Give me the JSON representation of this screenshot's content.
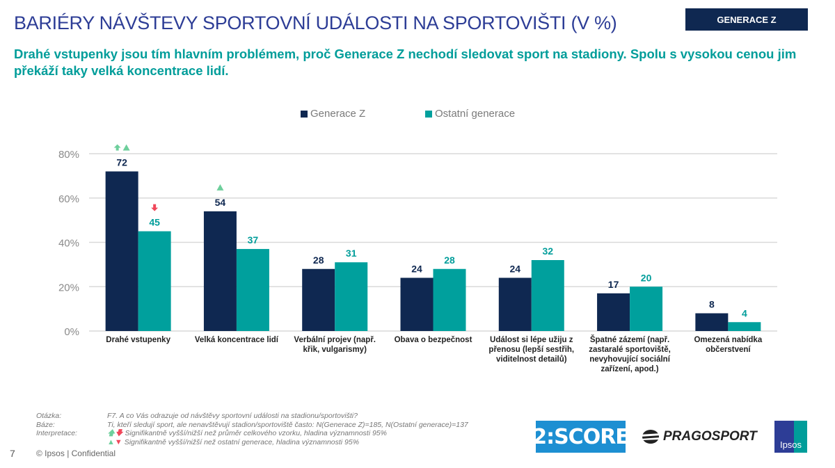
{
  "header": {
    "title": "BARIÉRY NÁVŠTEVY SPORTOVNÍ UDÁLOSTI NA SPORTOVIŠTI (V %)",
    "badge": "GENERACE Z",
    "subtitle": "Drahé vstupenky jsou tím hlavním problémem, proč Generace Z nechodí sledovat sport na stadiony. Spolu s vysokou cenou jim překáží taky velká koncentrace lidí."
  },
  "colors": {
    "series_gen_z": "#0f2851",
    "series_other": "#00a09d",
    "sig_up": "#6ecf9c",
    "sig_down": "#f0475a",
    "grid": "#d9d9d9"
  },
  "chart_data": {
    "type": "bar",
    "title": "BARIÉRY NÁVŠTEVY SPORTOVNÍ UDÁLOSTI NA SPORTOVIŠTI (V %)",
    "xlabel": "",
    "ylabel": "",
    "ylim": [
      0,
      80
    ],
    "yticks": [
      0,
      20,
      40,
      60,
      80
    ],
    "ytick_labels": [
      "0%",
      "20%",
      "40%",
      "60%",
      "80%"
    ],
    "grid": true,
    "legend_position": "top-center",
    "categories": [
      "Drahé vstupenky",
      "Velká koncentrace lidí",
      "Verbální projev (např. křik, vulgarismy)",
      "Obava o bezpečnost",
      "Událost si lépe užiju z přenosu (lepší sestřih, viditelnost detailů)",
      "Špatné zázemí (např. zastaralé sportoviště, nevyhovující sociální zařízení, apod.)",
      "Omezená nabídka občerstvení"
    ],
    "series": [
      {
        "name": "Generace Z",
        "values": [
          72,
          54,
          28,
          24,
          24,
          17,
          8
        ]
      },
      {
        "name": "Ostatní generace",
        "values": [
          45,
          37,
          31,
          28,
          32,
          20,
          4
        ]
      }
    ],
    "significance_marks": [
      {
        "category_index": 0,
        "series": "Generace Z",
        "marks": [
          "arrow-up",
          "triangle-up"
        ]
      },
      {
        "category_index": 0,
        "series": "Ostatní generace",
        "marks": [
          "arrow-down"
        ]
      },
      {
        "category_index": 1,
        "series": "Generace Z",
        "marks": [
          "triangle-up"
        ]
      }
    ]
  },
  "footer": {
    "question_label": "Otázka:",
    "question_text": "F7. A co Vás odrazuje od návštěvy sportovní události na stadionu/sportovišti?",
    "base_label": "Báze:",
    "base_text": "Ti, kteří sledují sport, ale nenavštěvují stadion/sportoviště často: N(Generace Z)=185, N(Ostatní generace)=137",
    "interpretation_label": "Interpretace:",
    "interpretation_1": "Signifikantně vyšší/nižší než průměr celkového vzorku, hladina významnosti 95%",
    "interpretation_2": "Signifikantně vyšší/nižší než ostatní generace, hladina významnosti 95%",
    "page_number": "7",
    "copyright": "© Ipsos | Confidential"
  },
  "logos": {
    "score": "2:SCORE",
    "pragosport": "PRAGOSPORT",
    "ipsos": "Ipsos"
  }
}
